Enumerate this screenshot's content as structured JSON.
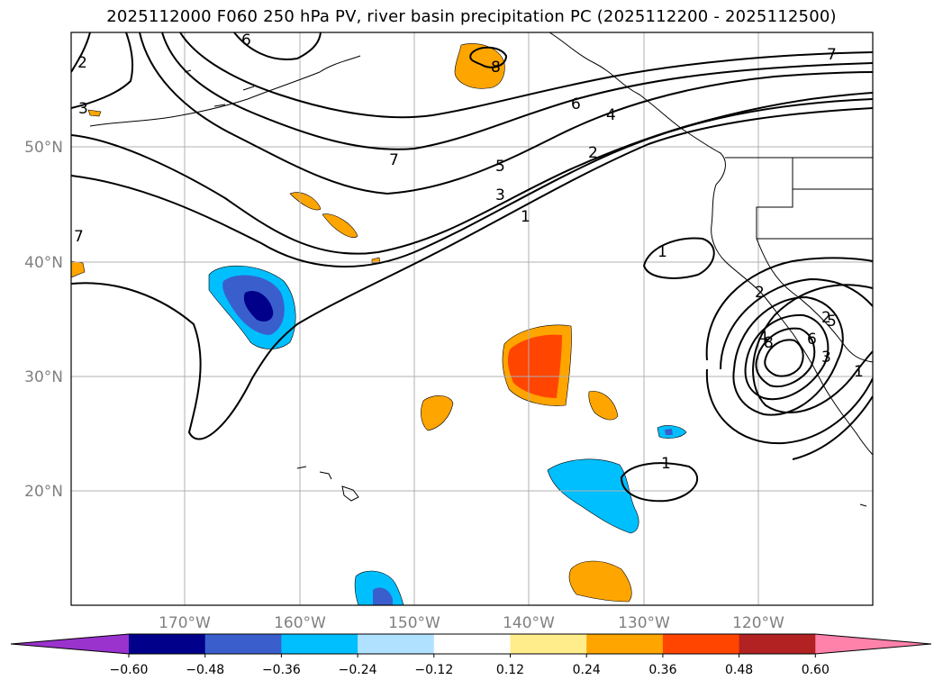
{
  "title": "2025112000 F060 250 hPa PV, river basin precipitation PC (2025112200 - 2025112500)",
  "lat_labels": [
    "50°N",
    "40°N",
    "30°N",
    "20°N"
  ],
  "lon_labels": [
    "170°W",
    "160°W",
    "150°W",
    "140°W",
    "130°W",
    "120°W"
  ],
  "contour_labels": [
    "2",
    "3",
    "6",
    "7",
    "7",
    "5",
    "3",
    "1",
    "6",
    "4",
    "2",
    "8",
    "7",
    "2",
    "1",
    "2",
    "4",
    "6",
    "8",
    "3",
    "5",
    "1",
    "1"
  ],
  "colorbar": {
    "ticks": [
      "−0.60",
      "−0.48",
      "−0.36",
      "−0.24",
      "−0.12",
      "0.12",
      "0.24",
      "0.36",
      "0.48",
      "0.60"
    ],
    "colors": [
      "#9a32cd",
      "#00008b",
      "#3a5fcd",
      "#00bfff",
      "#b0e2ff",
      "#ffffff",
      "#ffec8b",
      "#ffa500",
      "#ff4500",
      "#b22222",
      "#ff82ab"
    ]
  }
}
